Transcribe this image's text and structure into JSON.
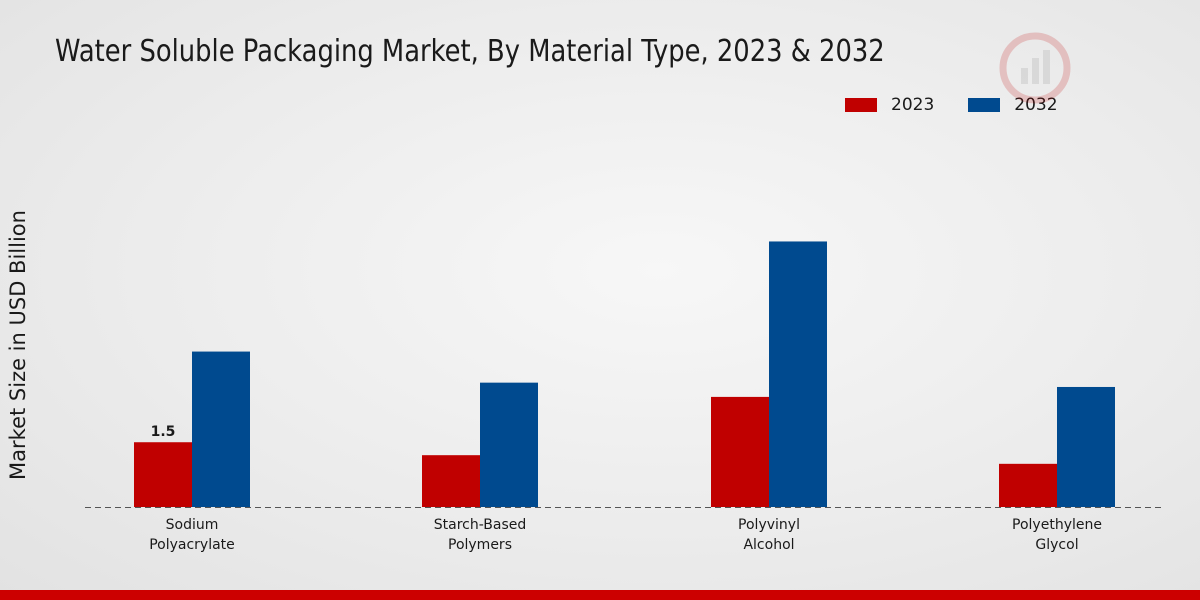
{
  "chart_data": {
    "type": "bar",
    "title": "Water Soluble Packaging Market, By Material Type, 2023 & 2032",
    "ylabel": "Market Size in USD Billion",
    "xlabel": "",
    "categories": [
      "Sodium Polyacrylate",
      "Starch-Based Polymers",
      "Polyvinyl Alcohol",
      "Polyethylene Glycol"
    ],
    "category_lines": [
      [
        "Sodium",
        "Polyacrylate"
      ],
      [
        "Starch-Based",
        "Polymers"
      ],
      [
        "Polyvinyl",
        "Alcohol"
      ],
      [
        "Polyethylene",
        "Glycol"
      ]
    ],
    "series": [
      {
        "name": "2023",
        "color": "#c00000",
        "values": [
          1.5,
          1.2,
          2.55,
          1.0
        ]
      },
      {
        "name": "2032",
        "color": "#004a8f",
        "values": [
          3.6,
          2.88,
          6.15,
          2.78
        ]
      }
    ],
    "data_labels": [
      {
        "series": 0,
        "index": 0,
        "text": "1.5"
      }
    ],
    "ylim": [
      0,
      8.5
    ],
    "grid": false,
    "legend_position": "top-right"
  }
}
